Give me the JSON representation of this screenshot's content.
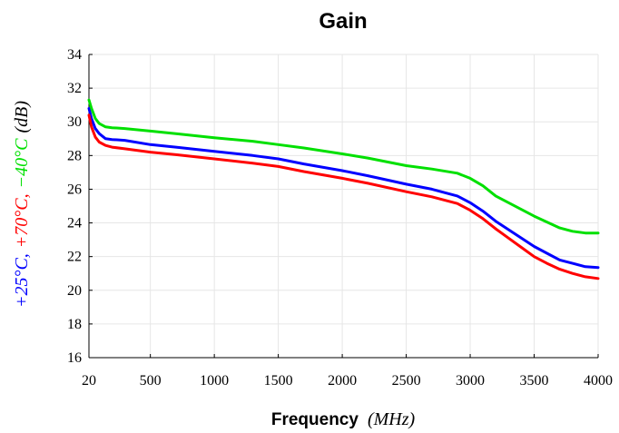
{
  "chart_data": {
    "type": "line",
    "title": "Gain",
    "xlabel": {
      "bold": "Frequency",
      "unit": "(MHz)"
    },
    "ylabel": [
      {
        "text": "+25°C,",
        "color": "#0000ff"
      },
      {
        "text": "+70°C,",
        "color": "#ff0000"
      },
      {
        "text": "−40°C",
        "color": "#00e000"
      },
      {
        "text": "(dB)",
        "color": "#000000"
      }
    ],
    "xlim": [
      20,
      4000
    ],
    "ylim": [
      16,
      34
    ],
    "xticks": [
      20,
      500,
      1000,
      1500,
      2000,
      2500,
      3000,
      3500,
      4000
    ],
    "yticks": [
      16,
      18,
      20,
      22,
      24,
      26,
      28,
      30,
      32,
      34
    ],
    "grid": true,
    "series": [
      {
        "color": "#0000ff",
        "x": [
          20,
          40,
          70,
          100,
          150,
          200,
          300,
          500,
          700,
          1000,
          1300,
          1500,
          1700,
          2000,
          2200,
          2500,
          2700,
          2900,
          3000,
          3100,
          3200,
          3300,
          3400,
          3500,
          3600,
          3700,
          3800,
          3900,
          4000
        ],
        "y": [
          30.8,
          30.2,
          29.6,
          29.3,
          29.0,
          28.95,
          28.9,
          28.65,
          28.5,
          28.25,
          28.0,
          27.8,
          27.5,
          27.1,
          26.8,
          26.3,
          26.0,
          25.6,
          25.2,
          24.7,
          24.1,
          23.6,
          23.1,
          22.6,
          22.2,
          21.8,
          21.6,
          21.4,
          21.35
        ]
      },
      {
        "color": "#ff0000",
        "x": [
          20,
          40,
          70,
          100,
          150,
          200,
          300,
          500,
          700,
          1000,
          1300,
          1500,
          1700,
          2000,
          2200,
          2500,
          2700,
          2900,
          3000,
          3100,
          3200,
          3300,
          3400,
          3500,
          3600,
          3700,
          3800,
          3900,
          4000
        ],
        "y": [
          30.4,
          29.7,
          29.1,
          28.8,
          28.6,
          28.5,
          28.4,
          28.2,
          28.05,
          27.8,
          27.55,
          27.35,
          27.05,
          26.65,
          26.35,
          25.85,
          25.55,
          25.15,
          24.75,
          24.25,
          23.65,
          23.1,
          22.55,
          22.0,
          21.6,
          21.25,
          21.0,
          20.8,
          20.7
        ]
      },
      {
        "color": "#00e000",
        "x": [
          20,
          40,
          70,
          100,
          150,
          200,
          300,
          500,
          700,
          1000,
          1300,
          1500,
          1700,
          2000,
          2200,
          2500,
          2700,
          2900,
          3000,
          3100,
          3200,
          3300,
          3400,
          3500,
          3600,
          3700,
          3800,
          3900,
          4000
        ],
        "y": [
          31.3,
          30.8,
          30.2,
          29.9,
          29.7,
          29.65,
          29.6,
          29.45,
          29.3,
          29.05,
          28.85,
          28.65,
          28.45,
          28.1,
          27.85,
          27.4,
          27.2,
          26.95,
          26.65,
          26.2,
          25.6,
          25.2,
          24.8,
          24.4,
          24.05,
          23.7,
          23.5,
          23.4,
          23.4
        ]
      }
    ]
  }
}
